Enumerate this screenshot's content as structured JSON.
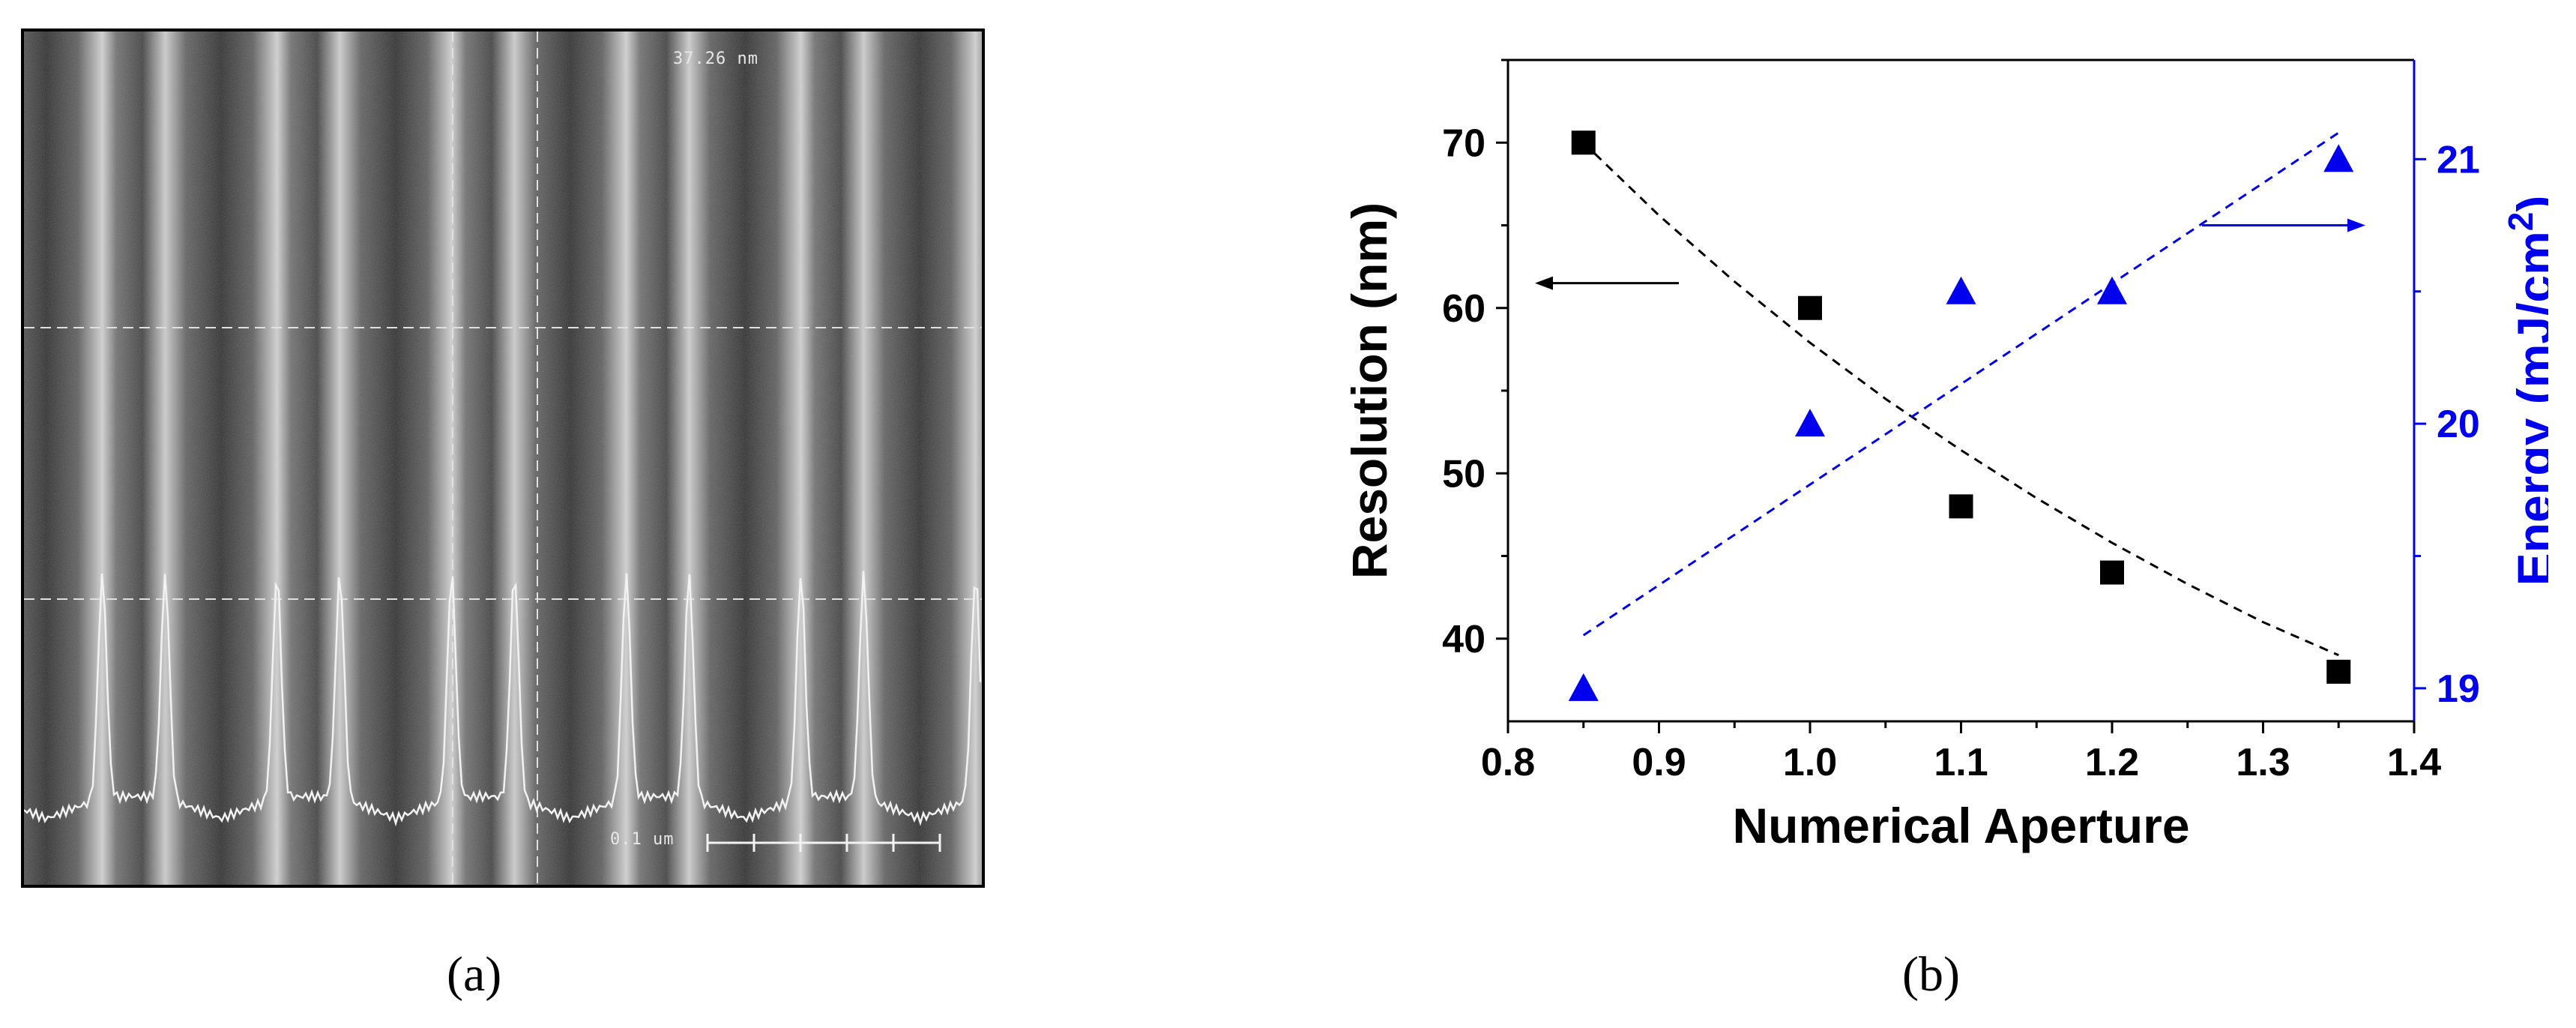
{
  "panel_a": {
    "caption": "(a)",
    "measurement_label": "37.26 nm",
    "scale_label": "0.1 um"
  },
  "panel_b": {
    "caption": "(b)"
  },
  "colors": {
    "resolution": "#000000",
    "energy": "#0000ee",
    "axis_right": "#0000ee"
  },
  "chart_data": {
    "type": "scatter",
    "xlabel": "Numerical Aperture",
    "ylabel": "Resolution (nm)",
    "ylabel_right_base": "Energy (mJ/cm",
    "ylabel_right_sup": "2",
    "ylabel_right_close": ")",
    "xlim": [
      0.8,
      1.4
    ],
    "ylim": [
      35,
      75
    ],
    "ylim_right": [
      18.875,
      21.375
    ],
    "x_ticks": [
      "0.8",
      "0.9",
      "1.0",
      "1.1",
      "1.2",
      "1.3",
      "1.4"
    ],
    "y_ticks": [
      "40",
      "50",
      "60",
      "70"
    ],
    "y_right_ticks": [
      "19",
      "20",
      "21"
    ],
    "grid": false,
    "series": [
      {
        "axis": "left",
        "marker": "square",
        "color": "#000000",
        "points": [
          {
            "x": 0.85,
            "y": 70
          },
          {
            "x": 1.0,
            "y": 60
          },
          {
            "x": 1.1,
            "y": 48
          },
          {
            "x": 1.2,
            "y": 44
          },
          {
            "x": 1.35,
            "y": 38
          }
        ],
        "fit": [
          {
            "x": 0.85,
            "y": 70
          },
          {
            "x": 0.9,
            "y": 65.6
          },
          {
            "x": 0.95,
            "y": 61.6
          },
          {
            "x": 1.0,
            "y": 57.9
          },
          {
            "x": 1.05,
            "y": 54.5
          },
          {
            "x": 1.1,
            "y": 51.4
          },
          {
            "x": 1.15,
            "y": 48.5
          },
          {
            "x": 1.2,
            "y": 45.8
          },
          {
            "x": 1.25,
            "y": 43.3
          },
          {
            "x": 1.3,
            "y": 41.0
          },
          {
            "x": 1.35,
            "y": 39.0
          }
        ]
      },
      {
        "axis": "right",
        "marker": "triangle",
        "color": "#0000ee",
        "points": [
          {
            "x": 0.85,
            "y": 19.0
          },
          {
            "x": 1.0,
            "y": 20.0
          },
          {
            "x": 1.1,
            "y": 20.5
          },
          {
            "x": 1.2,
            "y": 20.5
          },
          {
            "x": 1.35,
            "y": 21.0
          }
        ],
        "fit": [
          {
            "x": 0.85,
            "y": 19.2
          },
          {
            "x": 1.35,
            "y": 21.1
          }
        ]
      }
    ],
    "annotations": [
      {
        "type": "arrow",
        "direction": "left",
        "axis": "left"
      },
      {
        "type": "arrow",
        "direction": "right",
        "axis": "right"
      }
    ]
  }
}
